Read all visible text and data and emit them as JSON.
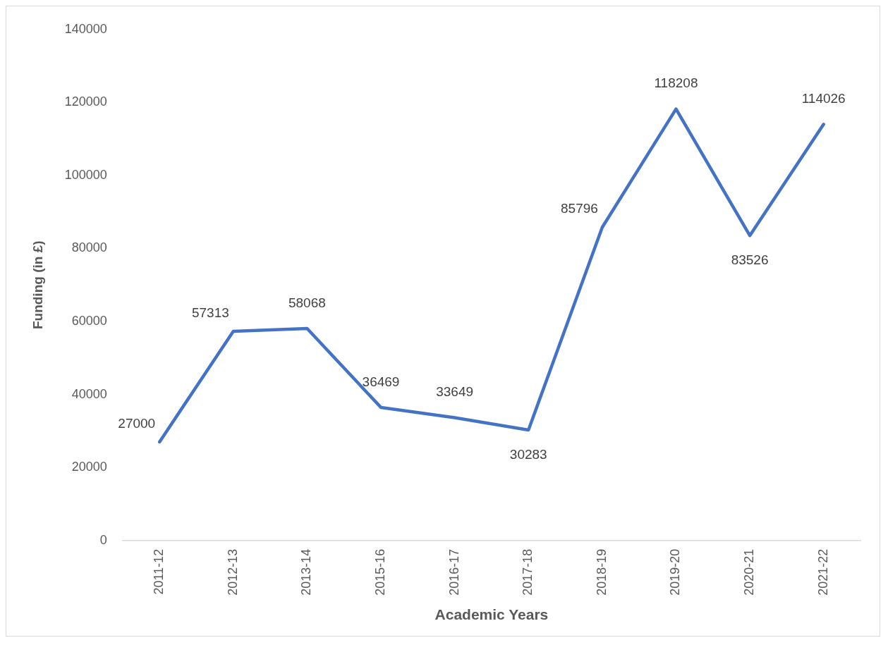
{
  "chart_data": {
    "type": "line",
    "xlabel": "Academic Years",
    "ylabel": "Funding (in £)",
    "categories": [
      "2011-12",
      "2012-13",
      "2013-14",
      "2015-16",
      "2016-17",
      "2017-18",
      "2018-19",
      "2019-20",
      "2020-21",
      "2021-22"
    ],
    "series": [
      {
        "color": "#4472c4",
        "values": [
          27000,
          57313,
          58068,
          36469,
          33649,
          30283,
          85796,
          118208,
          83526,
          114026
        ]
      }
    ],
    "ylim": [
      0,
      140000
    ],
    "yticks": [
      0,
      20000,
      40000,
      60000,
      80000,
      100000,
      120000,
      140000
    ],
    "grid": false,
    "legend": false,
    "marker": "none",
    "line_style": "solid",
    "data_labels": true
  }
}
